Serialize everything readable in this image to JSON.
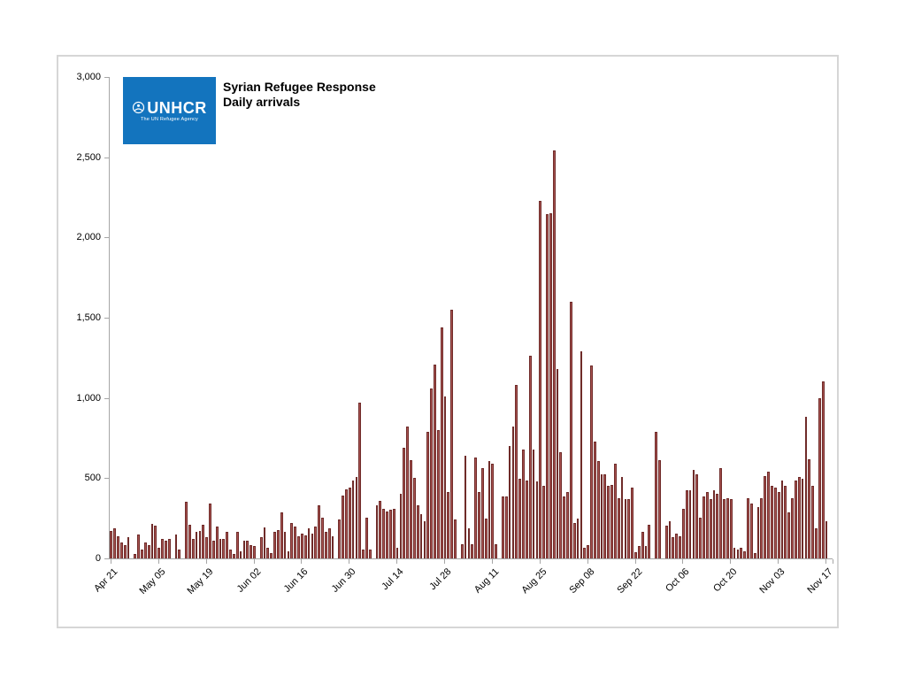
{
  "header": {
    "logo": {
      "name": "UNHCR",
      "tagline": "The UN Refugee Agency",
      "bg_color": "#1374BE",
      "text_color": "#FFFFFF"
    },
    "title_line1": "Syrian Refugee Response",
    "title_line2": "Daily arrivals"
  },
  "chart_data": {
    "type": "bar",
    "title": "Syrian Refugee Response",
    "subtitle": "Daily arrivals",
    "xlabel": "",
    "ylabel": "",
    "ylim": [
      0,
      3000
    ],
    "y_ticks": [
      0,
      500,
      1000,
      1500,
      2000,
      2500,
      3000
    ],
    "y_tick_labels": [
      "0",
      "500",
      "1,000",
      "1,500",
      "2,000",
      "2,500",
      "3,000"
    ],
    "grid": false,
    "legend": "none",
    "bar_color": "#A85250",
    "bar_border_color": "#6F2B29",
    "axis_color": "#A6A6A6",
    "x_start_date": "Apr 21",
    "x_end_date": "Nov 17",
    "x_tick_labels": [
      "Apr 21",
      "May 05",
      "May 19",
      "Jun 02",
      "Jun 16",
      "Jun 30",
      "Jul 14",
      "Jul 28",
      "Aug 11",
      "Aug 25",
      "Sep 08",
      "Sep 22",
      "Oct 06",
      "Oct 20",
      "Nov 03",
      "Nov 17"
    ],
    "x_tick_indices": [
      0,
      14,
      28,
      42,
      56,
      70,
      84,
      98,
      112,
      126,
      140,
      154,
      168,
      182,
      196,
      210
    ],
    "values": [
      170,
      190,
      140,
      100,
      85,
      130,
      0,
      30,
      150,
      55,
      100,
      85,
      215,
      205,
      65,
      120,
      110,
      120,
      0,
      150,
      55,
      0,
      355,
      210,
      120,
      165,
      170,
      210,
      130,
      340,
      110,
      200,
      120,
      120,
      165,
      55,
      30,
      165,
      45,
      110,
      110,
      85,
      75,
      0,
      130,
      195,
      65,
      35,
      165,
      175,
      285,
      165,
      45,
      220,
      200,
      140,
      155,
      145,
      185,
      155,
      200,
      330,
      255,
      165,
      185,
      140,
      0,
      240,
      390,
      430,
      440,
      485,
      505,
      970,
      55,
      255,
      55,
      0,
      330,
      360,
      310,
      295,
      305,
      310,
      65,
      405,
      690,
      820,
      610,
      500,
      330,
      275,
      230,
      790,
      1060,
      1210,
      800,
      1440,
      1010,
      415,
      1550,
      240,
      0,
      90,
      640,
      190,
      90,
      630,
      415,
      560,
      250,
      605,
      590,
      90,
      0,
      385,
      385,
      700,
      820,
      1080,
      495,
      680,
      485,
      1265,
      680,
      480,
      2230,
      450,
      2145,
      2150,
      2540,
      1180,
      660,
      385,
      415,
      1600,
      220,
      250,
      1290,
      65,
      85,
      1200,
      730,
      605,
      525,
      525,
      450,
      460,
      590,
      375,
      505,
      370,
      370,
      440,
      40,
      75,
      165,
      75,
      210,
      0,
      790,
      610,
      0,
      205,
      230,
      130,
      155,
      140,
      310,
      425,
      425,
      550,
      525,
      255,
      385,
      415,
      370,
      425,
      405,
      560,
      370,
      375,
      370,
      65,
      55,
      65,
      45,
      375,
      340,
      35,
      320,
      375,
      515,
      540,
      450,
      440,
      415,
      485,
      450,
      285,
      375,
      485,
      505,
      495,
      880,
      615,
      450,
      185,
      1000,
      1105,
      230
    ]
  }
}
